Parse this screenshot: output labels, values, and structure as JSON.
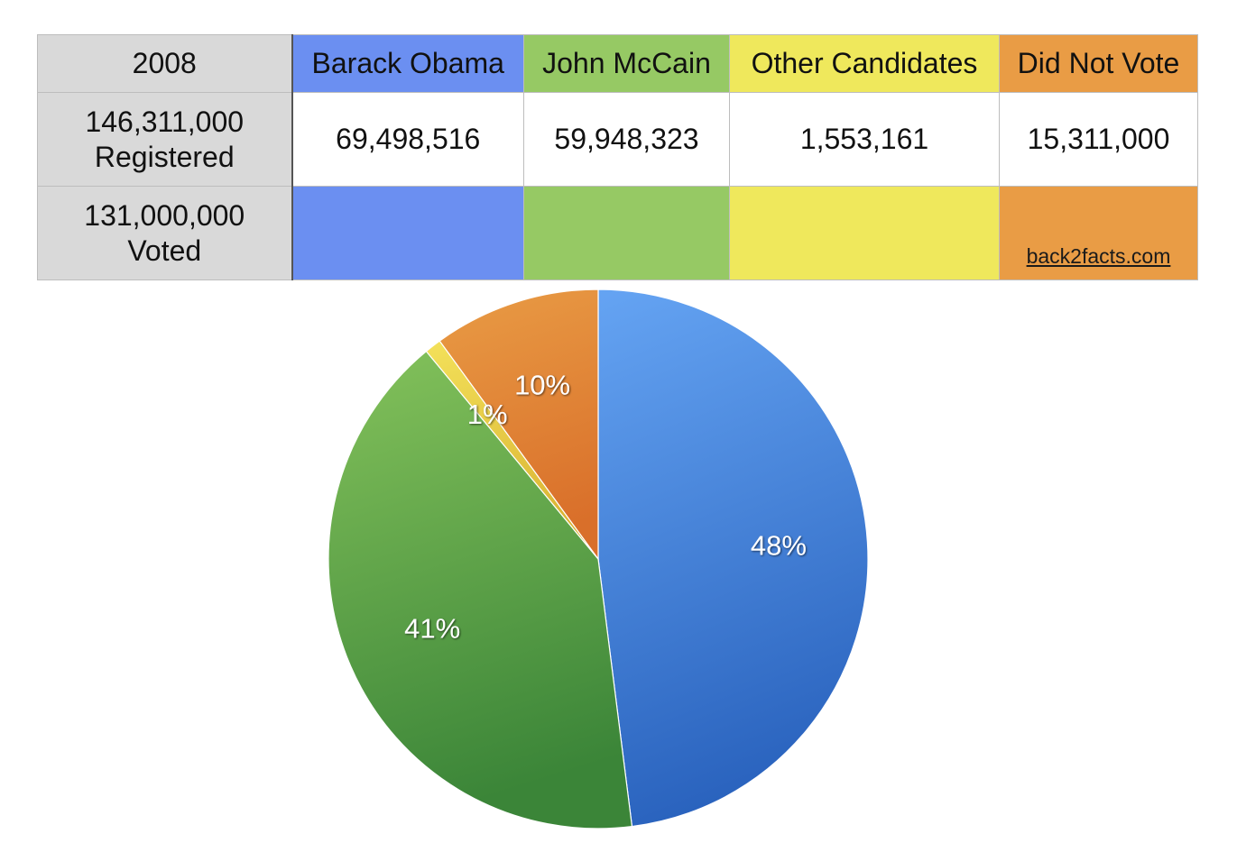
{
  "table": {
    "year": "2008",
    "columns": [
      "Barack Obama",
      "John McCain",
      "Other Candidates",
      "Did Not Vote"
    ],
    "registered_line1": "146,311,000",
    "registered_line2": "Registered",
    "values": [
      "69,498,516",
      "59,948,323",
      "1,553,161",
      "15,311,000"
    ],
    "voted_line1": "131,000,000",
    "voted_line2": "Voted",
    "watermark": "back2facts.com"
  },
  "colors": {
    "obama": "#6b8ff1",
    "mccain": "#96c964",
    "other": "#efe85c",
    "did_not_vote": "#e99c45"
  },
  "chart_data": {
    "type": "pie",
    "title": "",
    "categories": [
      "Barack Obama",
      "John McCain",
      "Other Candidates",
      "Did Not Vote"
    ],
    "values": [
      48,
      41,
      1,
      10
    ],
    "labels": [
      "48%",
      "41%",
      "1%",
      "10%"
    ],
    "start_angle_deg": 0,
    "direction": "clockwise",
    "gradients": [
      [
        "#65a4f3",
        "#2a63be"
      ],
      [
        "#84c25b",
        "#3b8538"
      ],
      [
        "#f3e15a",
        "#d9b232"
      ],
      [
        "#e99c45",
        "#d96f2a"
      ]
    ]
  }
}
